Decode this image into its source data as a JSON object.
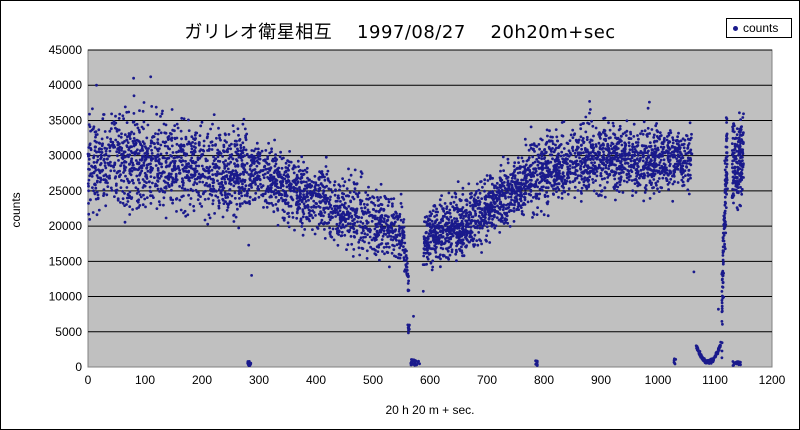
{
  "chart_data": {
    "type": "scatter",
    "title": "ガリレオ衛星相互　 1997/08/27　 20h20m+sec",
    "xlabel": "20 h 20 m + sec.",
    "ylabel": "counts",
    "xlim": [
      0,
      1200
    ],
    "ylim": [
      0,
      45000
    ],
    "x_ticks": [
      0,
      100,
      200,
      300,
      400,
      500,
      600,
      700,
      800,
      900,
      1000,
      1100,
      1200
    ],
    "y_ticks": [
      0,
      5000,
      10000,
      15000,
      20000,
      25000,
      30000,
      35000,
      40000,
      45000
    ],
    "grid": "horizontal",
    "legend_position": "top-right",
    "plot_background": "#c0c0c0",
    "marker_color": "#1a1a8c",
    "series": [
      {
        "name": "counts",
        "description_points": [
          [
            0,
            28500
          ],
          [
            20,
            29000
          ],
          [
            40,
            29200
          ],
          [
            60,
            29000
          ],
          [
            80,
            29100
          ],
          [
            100,
            29000
          ],
          [
            120,
            28900
          ],
          [
            140,
            28700
          ],
          [
            160,
            28600
          ],
          [
            180,
            28500
          ],
          [
            200,
            28400
          ],
          [
            220,
            28300
          ],
          [
            240,
            28200
          ],
          [
            260,
            28000
          ],
          [
            280,
            27700
          ],
          [
            300,
            27300
          ],
          [
            320,
            26600
          ],
          [
            340,
            25900
          ],
          [
            360,
            25300
          ],
          [
            380,
            24700
          ],
          [
            400,
            23900
          ],
          [
            420,
            23200
          ],
          [
            440,
            22400
          ],
          [
            460,
            21700
          ],
          [
            480,
            21100
          ],
          [
            500,
            20600
          ],
          [
            520,
            20100
          ],
          [
            540,
            19700
          ],
          [
            550,
            19200
          ],
          [
            555,
            17500
          ],
          [
            560,
            14500
          ],
          [
            565,
            9000
          ],
          [
            570,
            1000
          ],
          [
            575,
            400
          ],
          [
            580,
            300
          ],
          [
            590,
            18200
          ],
          [
            600,
            18500
          ],
          [
            620,
            19100
          ],
          [
            640,
            19700
          ],
          [
            660,
            20400
          ],
          [
            680,
            21300
          ],
          [
            700,
            22400
          ],
          [
            720,
            23600
          ],
          [
            740,
            24800
          ],
          [
            760,
            26000
          ],
          [
            780,
            27200
          ],
          [
            800,
            27900
          ],
          [
            820,
            28500
          ],
          [
            840,
            29100
          ],
          [
            860,
            29500
          ],
          [
            880,
            29700
          ],
          [
            900,
            29800
          ],
          [
            920,
            29800
          ],
          [
            940,
            29700
          ],
          [
            960,
            29500
          ],
          [
            980,
            29400
          ],
          [
            1000,
            29300
          ],
          [
            1020,
            29300
          ],
          [
            1040,
            29300
          ],
          [
            1060,
            29200
          ],
          [
            1070,
            3500
          ],
          [
            1080,
            1800
          ],
          [
            1090,
            1100
          ],
          [
            1100,
            1200
          ],
          [
            1110,
            2600
          ],
          [
            1120,
            29000
          ],
          [
            1140,
            29000
          ],
          [
            1145,
            29500
          ]
        ]
      }
    ]
  }
}
